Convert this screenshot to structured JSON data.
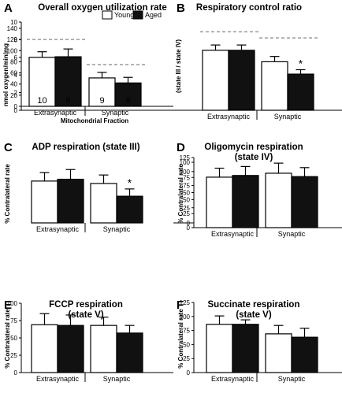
{
  "legend": {
    "young": "Young",
    "aged": "Aged"
  },
  "panels": [
    {
      "label": "A",
      "title_lines": [
        "Overall oxygen utilization rate"
      ]
    },
    {
      "label": "B",
      "title_lines": [
        "Respiratory  control ratio"
      ]
    },
    {
      "label": "C",
      "title_lines": [
        "ADP  respiration  (state III)"
      ]
    },
    {
      "label": "D",
      "title_lines": [
        "Oligomycin respiration",
        "(state IV)"
      ]
    },
    {
      "label": "E",
      "title_lines": [
        "FCCP respiration",
        "(state V)"
      ]
    },
    {
      "label": "F",
      "title_lines": [
        "Succinate respiration",
        "(state V)"
      ]
    }
  ],
  "chart_data": [
    {
      "type": "bar",
      "panel": "A",
      "title": "Overall oxygen utilization rate",
      "categories": [
        "Extrasynaptic",
        "Synaptic"
      ],
      "xlabel": "Mitochondrial Fraction",
      "ylabel": "nmol oxygen/min/mg",
      "ylim": [
        0,
        140
      ],
      "yticks": [
        0,
        20,
        40,
        60,
        80,
        100,
        120,
        140
      ],
      "series": [
        {
          "name": "Young",
          "color": "#ffffff",
          "values": [
            88,
            51
          ],
          "errors": [
            10,
            10
          ],
          "n": [
            "10",
            "9"
          ]
        },
        {
          "name": "Aged",
          "color": "#111111",
          "values": [
            89,
            42
          ],
          "errors": [
            14,
            10
          ],
          "n": [
            "9",
            "9"
          ]
        }
      ],
      "reference_lines": [
        {
          "category": "Extrasynaptic",
          "value": 120
        },
        {
          "category": "Synaptic",
          "value": 75
        }
      ],
      "annotations": [],
      "legend_position": "top"
    },
    {
      "type": "bar",
      "panel": "B",
      "title": "Respiratory  control ratio",
      "categories": [
        "Extrasynaptic",
        "Synaptic"
      ],
      "xlabel": "",
      "ylabel": "(state III / state IV)",
      "ylim": [
        0,
        10
      ],
      "yticks": [
        0,
        2,
        4,
        6,
        8,
        10
      ],
      "series": [
        {
          "name": "Young",
          "color": "#ffffff",
          "values": [
            6.8,
            5.5
          ],
          "errors": [
            0.6,
            0.6
          ]
        },
        {
          "name": "Aged",
          "color": "#111111",
          "values": [
            6.8,
            4.1
          ],
          "errors": [
            0.6,
            0.5
          ]
        }
      ],
      "reference_lines": [
        {
          "category": "Extrasynaptic",
          "value": 8.9
        },
        {
          "category": "Synaptic",
          "value": 8.2
        }
      ],
      "annotations": [
        {
          "text": "*",
          "category": "Synaptic",
          "series": "Aged"
        }
      ]
    },
    {
      "type": "bar",
      "panel": "C",
      "title": "ADP  respiration  (state III)",
      "categories": [
        "Extrasynaptic",
        "Synaptic"
      ],
      "xlabel": "",
      "ylabel": "% Contralateral rate",
      "ylim": [
        0,
        100
      ],
      "yticks": [
        0,
        25,
        50,
        75,
        100
      ],
      "series": [
        {
          "name": "Young",
          "color": "#ffffff",
          "values": [
            69,
            65
          ],
          "errors": [
            14,
            14
          ]
        },
        {
          "name": "Aged",
          "color": "#111111",
          "values": [
            72,
            44
          ],
          "errors": [
            16,
            12
          ]
        }
      ],
      "reference_lines": [],
      "annotations": [
        {
          "text": "*",
          "category": "Synaptic",
          "series": "Aged"
        }
      ]
    },
    {
      "type": "bar",
      "panel": "D",
      "title": "Oligomycin respiration (state IV)",
      "categories": [
        "Extrasynaptic",
        "Synaptic"
      ],
      "xlabel": "",
      "ylabel": "% Contralateral rate",
      "ylim": [
        0,
        125
      ],
      "yticks": [
        0,
        25,
        50,
        75,
        100,
        125
      ],
      "series": [
        {
          "name": "Young",
          "color": "#ffffff",
          "values": [
            90,
            97
          ],
          "errors": [
            16,
            18
          ]
        },
        {
          "name": "Aged",
          "color": "#111111",
          "values": [
            93,
            91
          ],
          "errors": [
            16,
            16
          ]
        }
      ],
      "reference_lines": [],
      "annotations": []
    },
    {
      "type": "bar",
      "panel": "E",
      "title": "FCCP respiration (state V)",
      "categories": [
        "Extrasynaptic",
        "Synaptic"
      ],
      "xlabel": "",
      "ylabel": "% Contralateral rate",
      "ylim": [
        0,
        100
      ],
      "yticks": [
        0,
        25,
        50,
        75,
        100
      ],
      "series": [
        {
          "name": "Young",
          "color": "#ffffff",
          "values": [
            69,
            68
          ],
          "errors": [
            16,
            12
          ]
        },
        {
          "name": "Aged",
          "color": "#111111",
          "values": [
            68,
            57
          ],
          "errors": [
            15,
            11
          ]
        }
      ],
      "reference_lines": [],
      "annotations": []
    },
    {
      "type": "bar",
      "panel": "F",
      "title": "Succinate respiration (state V)",
      "categories": [
        "Extrasynaptic",
        "Synaptic"
      ],
      "xlabel": "",
      "ylabel": "% Contralateral rate",
      "ylim": [
        0,
        125
      ],
      "yticks": [
        0,
        25,
        50,
        75,
        100,
        125
      ],
      "series": [
        {
          "name": "Young",
          "color": "#ffffff",
          "values": [
            86,
            69
          ],
          "errors": [
            15,
            15
          ]
        },
        {
          "name": "Aged",
          "color": "#111111",
          "values": [
            86,
            63
          ],
          "errors": [
            8,
            16
          ]
        }
      ],
      "reference_lines": [],
      "annotations": []
    }
  ]
}
